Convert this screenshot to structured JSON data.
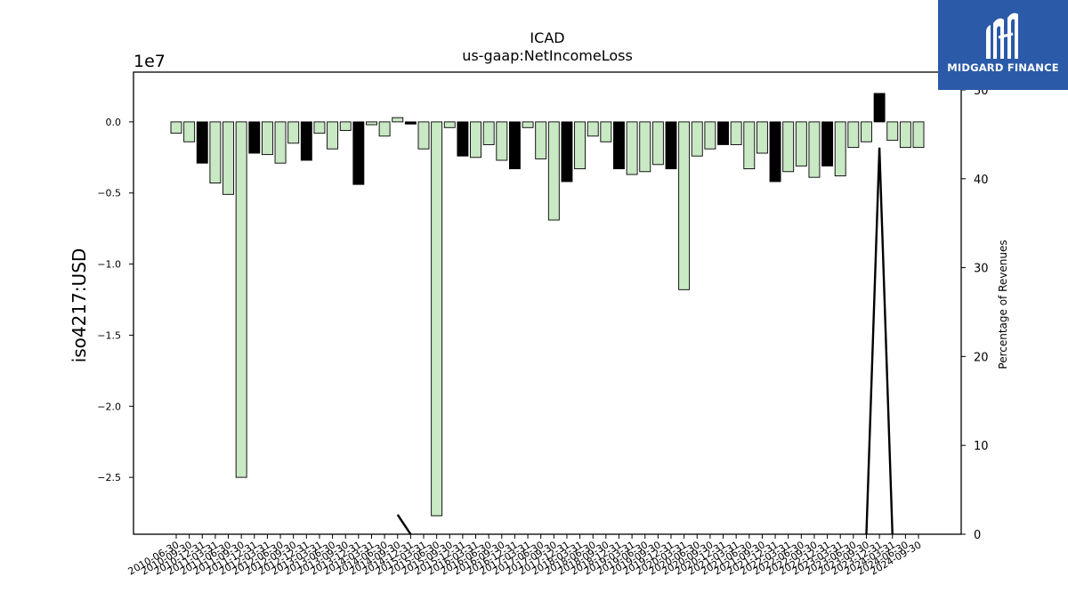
{
  "chart_data": {
    "type": "bar",
    "title": "ICAD",
    "subtitle": "us-gaap:NetIncomeLoss",
    "ylabel": "iso4217:USD",
    "y2label": "Percentage of Revenues",
    "y_offset_text": "1e7",
    "ylim": [
      -29000000,
      3500000
    ],
    "y2lim": [
      0,
      52
    ],
    "y_ticks": [
      0,
      -5000000,
      -10000000,
      -15000000,
      -20000000,
      -25000000
    ],
    "y_tick_labels": [
      "0.0",
      "−0.5",
      "−1.0",
      "−1.5",
      "−2.0",
      "−2.5"
    ],
    "y2_ticks": [
      0,
      10,
      20,
      30,
      40,
      50
    ],
    "grid": false,
    "colors": {
      "bar_light": "#c9e8c4",
      "bar_dark": "#000000",
      "edge": "#000000",
      "line": "#000000"
    },
    "categories": [
      "2010-06-30",
      "2010-09-30",
      "2010-12-31",
      "2011-03-31",
      "2011-06-30",
      "2011-09-30",
      "2011-12-31",
      "2012-03-31",
      "2012-06-30",
      "2012-09-30",
      "2012-12-31",
      "2013-03-31",
      "2013-06-30",
      "2013-09-30",
      "2013-12-31",
      "2014-03-31",
      "2014-06-30",
      "2014-09-30",
      "2014-12-31",
      "2015-03-31",
      "2015-06-30",
      "2015-09-30",
      "2015-12-31",
      "2016-03-31",
      "2016-06-30",
      "2016-09-30",
      "2016-12-31",
      "2017-03-31",
      "2017-06-30",
      "2017-09-30",
      "2017-12-31",
      "2018-03-31",
      "2018-06-30",
      "2018-09-30",
      "2018-12-31",
      "2019-03-31",
      "2019-06-30",
      "2019-09-30",
      "2019-12-31",
      "2020-03-31",
      "2020-06-30",
      "2020-09-30",
      "2020-12-31",
      "2021-03-31",
      "2021-06-30",
      "2021-09-30",
      "2021-12-31",
      "2022-03-31",
      "2022-06-30",
      "2022-09-30",
      "2022-12-31",
      "2023-03-31",
      "2023-06-30",
      "2023-09-30",
      "2023-12-31",
      "2024-03-31",
      "2024-06-30",
      "2024-09-30"
    ],
    "values": [
      -800000,
      -1400000,
      -2900000,
      -4300000,
      -5100000,
      -25000000,
      -2200000,
      -2300000,
      -2900000,
      -1500000,
      -2700000,
      -800000,
      -1900000,
      -600000,
      -4400000,
      -200000,
      -1000000,
      300000,
      -150000,
      -1900000,
      -27700000,
      -400000,
      -2400000,
      -2500000,
      -1600000,
      -2700000,
      -3300000,
      -400000,
      -2600000,
      -6900000,
      -4200000,
      -3300000,
      -1000000,
      -1400000,
      -3300000,
      -3700000,
      -3500000,
      -3000000,
      -3300000,
      -11800000,
      -2400000,
      -1900000,
      -1600000,
      -1600000,
      -3300000,
      -2200000,
      -4200000,
      -3500000,
      -3100000,
      -3900000,
      -3100000,
      -3800000,
      -1800000,
      -1400000,
      2000000,
      -1300000,
      -1800000,
      -1800000
    ],
    "dark_bars": [
      2,
      6,
      10,
      14,
      18,
      22,
      26,
      30,
      34,
      38,
      42,
      46,
      50,
      54
    ],
    "pct_of_revenue": [
      null,
      null,
      null,
      null,
      null,
      null,
      null,
      null,
      null,
      null,
      null,
      null,
      null,
      null,
      null,
      null,
      null,
      2.2,
      0,
      null,
      null,
      null,
      null,
      null,
      null,
      null,
      null,
      null,
      null,
      null,
      null,
      null,
      null,
      null,
      null,
      null,
      null,
      null,
      null,
      null,
      null,
      null,
      null,
      null,
      null,
      null,
      null,
      null,
      null,
      null,
      null,
      null,
      null,
      0,
      43.5,
      0,
      null,
      null
    ],
    "tick_labels_visible": [
      "2010-06-30",
      "2010-09-30",
      "2010-12-31",
      "2011-03-31",
      "2011-06-30",
      "2011-09-30",
      "2011-12-31",
      "2012-03-31",
      "2012-06-30",
      "2012-09-30",
      "2012-12-31",
      "2013-03-31",
      "2013-06-30",
      "2013-09-30",
      "2013-12-31",
      "2014-03-31",
      "2014-06-30",
      "2014-09-30",
      "2014-12-31",
      "2015-03-31",
      "2015-06-30",
      "2015-09-30",
      "2015-12-31",
      "2016-03-31",
      "2016-06-30",
      "2016-09-30",
      "2016-12-31",
      "2017-03-31",
      "2017-06-30",
      "2017-09-30",
      "2017-12-31",
      "2018-03-31",
      "2018-06-30",
      "2018-09-30",
      "2018-12-31",
      "2019-03-31",
      "2019-06-30",
      "2019-09-30",
      "2019-12-31",
      "2020-03-31",
      "2020-06-30",
      "2020-09-30",
      "2020-12-31",
      "2021-03-31",
      "2021-06-30",
      "2021-09-30",
      "2021-12-31",
      "2022-03-31",
      "2022-06-30",
      "2022-09-30",
      "2022-12-31",
      "2023-03-31",
      "2023-06-30",
      "2023-09-30",
      "2023-12-31",
      "2024-03-31",
      "2024-06-30",
      "2024-09-30"
    ]
  },
  "logo": {
    "text": "MIDGARD FINANCE"
  }
}
